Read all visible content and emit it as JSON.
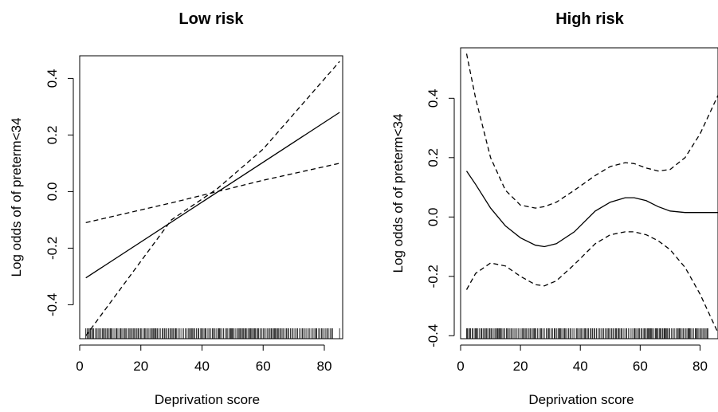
{
  "chart_data": [
    {
      "type": "line",
      "title": "Low risk",
      "xlabel": "Deprivation score",
      "ylabel": "Log odds of of preterm<34",
      "xlim": [
        0,
        86
      ],
      "ylim": [
        -0.52,
        0.48
      ],
      "xticks": [
        0,
        20,
        40,
        60,
        80
      ],
      "xtick_labels": [
        "0",
        "20",
        "40",
        "60",
        "80"
      ],
      "yticks": [
        -0.4,
        -0.2,
        0.0,
        0.2,
        0.4
      ],
      "ytick_labels": [
        "-0.4",
        "-0.2",
        "0.0",
        "0.2",
        "0.4"
      ],
      "series": [
        {
          "style": "solid",
          "x": [
            2,
            85
          ],
          "y": [
            -0.305,
            0.28
          ]
        },
        {
          "style": "dashed",
          "x": [
            2,
            30,
            45,
            60,
            85
          ],
          "y": [
            -0.11,
            -0.04,
            0.0,
            0.04,
            0.1
          ]
        },
        {
          "style": "dashed",
          "x": [
            2,
            30,
            45,
            60,
            85
          ],
          "y": [
            -0.51,
            -0.1,
            0.01,
            0.15,
            0.46
          ]
        }
      ],
      "rug": {
        "x_min": 2,
        "x_max": 83,
        "x_extra": [
          85
        ]
      },
      "grid": false,
      "legend": "none"
    },
    {
      "type": "line",
      "title": "High risk",
      "xlabel": "Deprivation score",
      "ylabel": "Log odds of of preterm<34",
      "xlim": [
        0,
        86
      ],
      "ylim": [
        -0.41,
        0.57
      ],
      "xticks": [
        0,
        20,
        40,
        60,
        80
      ],
      "xtick_labels": [
        "0",
        "20",
        "40",
        "60",
        "80"
      ],
      "yticks": [
        -0.4,
        -0.2,
        0.0,
        0.2,
        0.4
      ],
      "ytick_labels": [
        "-0.4",
        "-0.2",
        "0.0",
        "0.2",
        "0.4"
      ],
      "series": [
        {
          "style": "solid",
          "x": [
            2,
            5,
            10,
            15,
            20,
            25,
            28,
            32,
            38,
            45,
            50,
            55,
            58,
            62,
            66,
            70,
            75,
            80,
            86
          ],
          "y": [
            0.155,
            0.11,
            0.03,
            -0.03,
            -0.07,
            -0.095,
            -0.1,
            -0.09,
            -0.05,
            0.02,
            0.05,
            0.065,
            0.065,
            0.055,
            0.035,
            0.02,
            0.015,
            0.015,
            0.015
          ]
        },
        {
          "style": "dashed",
          "x": [
            2,
            5,
            10,
            15,
            20,
            25,
            28,
            32,
            38,
            45,
            50,
            55,
            58,
            62,
            66,
            70,
            75,
            80,
            86
          ],
          "y": [
            0.55,
            0.4,
            0.2,
            0.09,
            0.04,
            0.03,
            0.035,
            0.05,
            0.09,
            0.14,
            0.17,
            0.183,
            0.18,
            0.165,
            0.155,
            0.16,
            0.2,
            0.28,
            0.41
          ]
        },
        {
          "style": "dashed",
          "x": [
            2,
            5,
            10,
            15,
            20,
            25,
            28,
            32,
            38,
            45,
            50,
            55,
            58,
            62,
            66,
            70,
            75,
            80,
            86
          ],
          "y": [
            -0.245,
            -0.19,
            -0.155,
            -0.165,
            -0.2,
            -0.228,
            -0.232,
            -0.215,
            -0.16,
            -0.09,
            -0.06,
            -0.05,
            -0.05,
            -0.06,
            -0.08,
            -0.11,
            -0.17,
            -0.26,
            -0.39
          ]
        }
      ],
      "rug": {
        "x_min": 2,
        "x_max": 83,
        "x_extra": []
      },
      "grid": false,
      "legend": "none"
    }
  ]
}
